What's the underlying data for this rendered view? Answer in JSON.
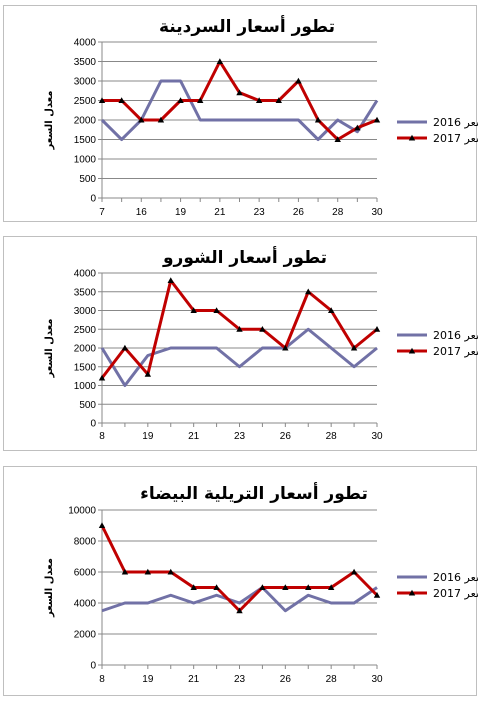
{
  "chart_data": [
    {
      "type": "line",
      "title": "تطور أسعار السردينة",
      "ylabel": "معدل السعر",
      "ylim": [
        0,
        4000
      ],
      "yticks": [
        0,
        500,
        1000,
        1500,
        2000,
        2500,
        3000,
        3500,
        4000
      ],
      "categories": [
        "7",
        "8",
        "16",
        "17",
        "19",
        "20",
        "21",
        "22",
        "23",
        "24",
        "26",
        "27",
        "28",
        "29",
        "30"
      ],
      "xtick_labels": [
        "7",
        "16",
        "19",
        "21",
        "23",
        "26",
        "28",
        "30"
      ],
      "series": [
        {
          "name": "2016 السعر",
          "color": "#7171a6",
          "marker": "none",
          "values": [
            2000,
            1500,
            2000,
            3000,
            3000,
            2000,
            2000,
            2000,
            2000,
            2000,
            2000,
            1500,
            2000,
            1700,
            2500
          ]
        },
        {
          "name": "2017 السعر",
          "color": "#c00000",
          "marker": "triangle",
          "values": [
            2500,
            2500,
            2000,
            2000,
            2500,
            2500,
            3500,
            2700,
            2500,
            2500,
            3000,
            2000,
            1500,
            1800,
            2000
          ]
        }
      ]
    },
    {
      "type": "line",
      "title": "تطور أسعار الشورو",
      "ylabel": "معدل السعر",
      "ylim": [
        0,
        4000
      ],
      "yticks": [
        0,
        500,
        1000,
        1500,
        2000,
        2500,
        3000,
        3500,
        4000
      ],
      "categories": [
        "8",
        "9",
        "19",
        "20",
        "21",
        "22",
        "23",
        "24",
        "26",
        "27",
        "28",
        "29",
        "30"
      ],
      "xtick_labels": [
        "8",
        "19",
        "21",
        "23",
        "26",
        "28",
        "30"
      ],
      "series": [
        {
          "name": "2016 السعر",
          "color": "#7171a6",
          "marker": "none",
          "values": [
            2000,
            1000,
            1800,
            2000,
            2000,
            2000,
            1500,
            2000,
            2000,
            2500,
            2000,
            1500,
            2000
          ]
        },
        {
          "name": "2017 السعر",
          "color": "#c00000",
          "marker": "triangle",
          "values": [
            1200,
            2000,
            1300,
            3800,
            3000,
            3000,
            2500,
            2500,
            2000,
            3500,
            3000,
            2000,
            2500
          ]
        }
      ]
    },
    {
      "type": "line",
      "title": "تطور أسعار التريلية البيضاء",
      "ylabel": "معدل السعر",
      "ylim": [
        0,
        10000
      ],
      "yticks": [
        0,
        2000,
        4000,
        6000,
        8000,
        10000
      ],
      "categories": [
        "8",
        "9",
        "19",
        "20",
        "21",
        "22",
        "23",
        "24",
        "26",
        "27",
        "28",
        "29",
        "30"
      ],
      "xtick_labels": [
        "8",
        "19",
        "21",
        "23",
        "26",
        "28",
        "30"
      ],
      "series": [
        {
          "name": "2016 السعر",
          "color": "#7171a6",
          "marker": "none",
          "values": [
            3500,
            4000,
            4000,
            4500,
            4000,
            4500,
            4000,
            5000,
            3500,
            4500,
            4000,
            4000,
            5000
          ]
        },
        {
          "name": "2017 السعر",
          "color": "#c00000",
          "marker": "triangle",
          "values": [
            9000,
            6000,
            6000,
            6000,
            5000,
            5000,
            3500,
            5000,
            5000,
            5000,
            5000,
            6000,
            4500
          ]
        }
      ]
    }
  ]
}
